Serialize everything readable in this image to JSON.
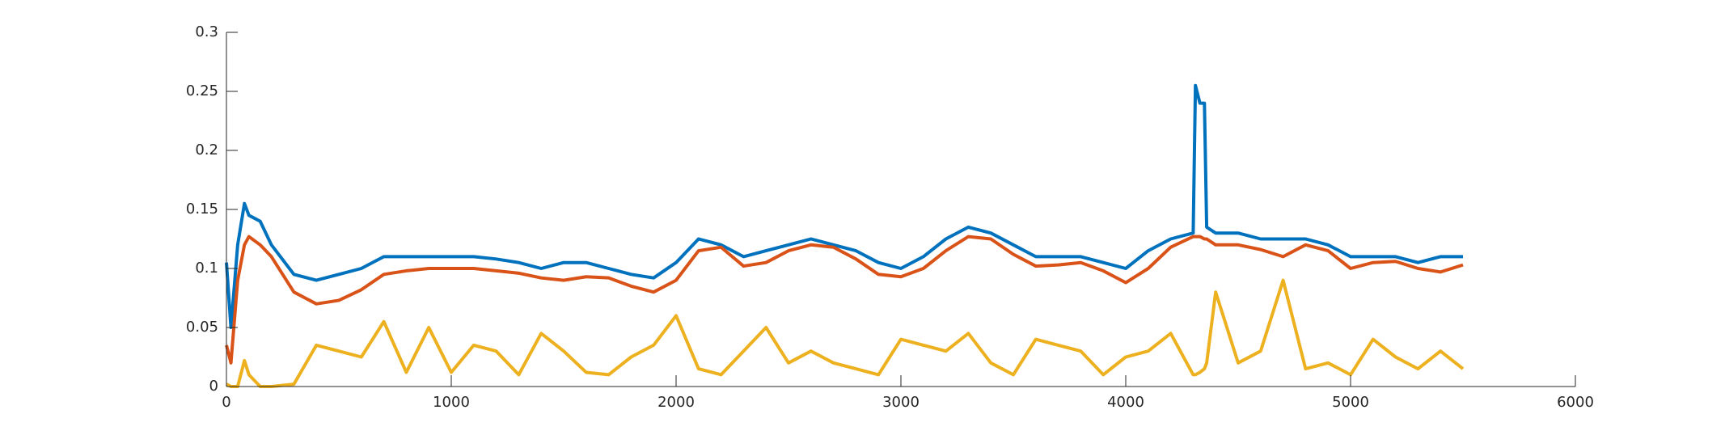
{
  "chart_data": {
    "type": "line",
    "x": [
      0,
      20,
      50,
      80,
      100,
      150,
      200,
      300,
      400,
      500,
      600,
      700,
      800,
      900,
      1000,
      1100,
      1200,
      1300,
      1400,
      1500,
      1600,
      1700,
      1800,
      1900,
      2000,
      2100,
      2200,
      2300,
      2400,
      2500,
      2600,
      2700,
      2800,
      2900,
      3000,
      3100,
      3200,
      3300,
      3400,
      3500,
      3600,
      3700,
      3800,
      3900,
      4000,
      4100,
      4200,
      4300,
      4310,
      4330,
      4350,
      4360,
      4400,
      4500,
      4600,
      4700,
      4800,
      4900,
      5000,
      5100,
      5200,
      5300,
      5400,
      5500
    ],
    "series": [
      {
        "color": "#0072bd",
        "values": [
          0.105,
          0.05,
          0.12,
          0.155,
          0.145,
          0.14,
          0.12,
          0.095,
          0.09,
          0.095,
          0.1,
          0.11,
          0.11,
          0.11,
          0.11,
          0.11,
          0.108,
          0.105,
          0.1,
          0.105,
          0.105,
          0.1,
          0.095,
          0.092,
          0.105,
          0.125,
          0.12,
          0.11,
          0.115,
          0.12,
          0.125,
          0.12,
          0.115,
          0.105,
          0.1,
          0.11,
          0.125,
          0.135,
          0.13,
          0.12,
          0.11,
          0.11,
          0.11,
          0.105,
          0.1,
          0.115,
          0.125,
          0.13,
          0.255,
          0.24,
          0.24,
          0.135,
          0.13,
          0.13,
          0.125,
          0.125,
          0.125,
          0.12,
          0.11,
          0.11,
          0.11,
          0.105,
          0.11,
          0.11
        ]
      },
      {
        "color": "#d95319",
        "values": [
          0.035,
          0.02,
          0.09,
          0.12,
          0.127,
          0.12,
          0.11,
          0.08,
          0.07,
          0.073,
          0.082,
          0.095,
          0.098,
          0.1,
          0.1,
          0.1,
          0.098,
          0.096,
          0.092,
          0.09,
          0.093,
          0.092,
          0.085,
          0.08,
          0.09,
          0.115,
          0.118,
          0.102,
          0.105,
          0.115,
          0.12,
          0.118,
          0.108,
          0.095,
          0.093,
          0.1,
          0.115,
          0.127,
          0.125,
          0.112,
          0.102,
          0.103,
          0.105,
          0.098,
          0.088,
          0.1,
          0.118,
          0.127,
          0.127,
          0.127,
          0.125,
          0.125,
          0.12,
          0.12,
          0.116,
          0.11,
          0.12,
          0.115,
          0.1,
          0.105,
          0.106,
          0.1,
          0.097,
          0.103
        ]
      },
      {
        "color": "#edb120",
        "values": [
          0.002,
          0,
          0,
          0.022,
          0.01,
          0,
          0,
          0.002,
          0.035,
          0.03,
          0.025,
          0.055,
          0.012,
          0.05,
          0.012,
          0.035,
          0.03,
          0.01,
          0.045,
          0.03,
          0.012,
          0.01,
          0.025,
          0.035,
          0.06,
          0.015,
          0.01,
          0.03,
          0.05,
          0.02,
          0.03,
          0.02,
          0.015,
          0.01,
          0.04,
          0.035,
          0.03,
          0.045,
          0.02,
          0.01,
          0.04,
          0.035,
          0.03,
          0.01,
          0.025,
          0.03,
          0.045,
          0.01,
          0.01,
          0.012,
          0.015,
          0.02,
          0.08,
          0.02,
          0.03,
          0.09,
          0.015,
          0.02,
          0.01,
          0.04,
          0.025,
          0.015,
          0.03,
          0.015
        ]
      }
    ],
    "xlim": [
      0,
      6000
    ],
    "xticks": [
      0,
      1000,
      2000,
      3000,
      4000,
      5000,
      6000
    ],
    "ylim": [
      0,
      0.3
    ],
    "yticks": [
      0,
      0.05,
      0.1,
      0.15,
      0.2,
      0.25,
      0.3
    ]
  }
}
